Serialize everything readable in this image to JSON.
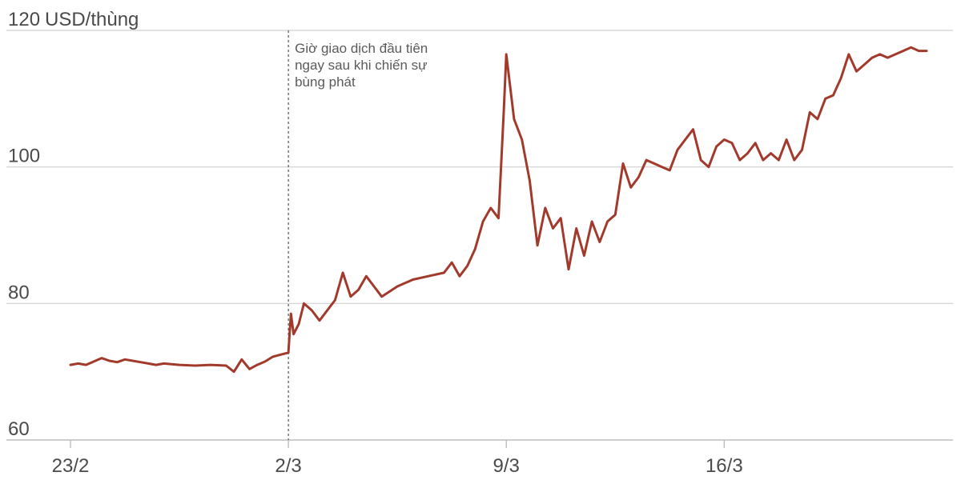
{
  "chart_data": {
    "type": "line",
    "title": "",
    "ylabel": "USD/thùng",
    "xlabel": "",
    "ylim": [
      60,
      120
    ],
    "y_ticks": [
      60,
      80,
      100,
      120
    ],
    "x_range": [
      "2022-02-23",
      "2022-03-22T12:00"
    ],
    "x_ticks": [
      {
        "date": "2022-02-23",
        "label": "23/2"
      },
      {
        "date": "2022-03-02",
        "label": "2/3"
      },
      {
        "date": "2022-03-09",
        "label": "9/3"
      },
      {
        "date": "2022-03-16",
        "label": "16/3"
      }
    ],
    "grid": true,
    "color": "#a23a2c",
    "annotation": {
      "date": "2022-03-02",
      "lines": [
        "Giờ giao dịch đầu tiên",
        "ngay sau khi chiến sự",
        "bùng phát"
      ]
    },
    "series": [
      {
        "name": "",
        "x": [
          "2022-02-23",
          "2022-02-23T06:00",
          "2022-02-23T12:00",
          "2022-02-23T18:00",
          "2022-02-24",
          "2022-02-24T06:00",
          "2022-02-24T12:00",
          "2022-02-24T18:00",
          "2022-02-25",
          "2022-02-25T06:00",
          "2022-02-25T12:00",
          "2022-02-25T18:00",
          "2022-02-26",
          "2022-02-26T12:00",
          "2022-02-27",
          "2022-02-27T12:00",
          "2022-02-28",
          "2022-02-28T06:00",
          "2022-02-28T12:00",
          "2022-02-28T18:00",
          "2022-03-01",
          "2022-03-01T06:00",
          "2022-03-01T12:00",
          "2022-03-01T18:00",
          "2022-03-02",
          "2022-03-02T02:00",
          "2022-03-02T04:00",
          "2022-03-02T08:00",
          "2022-03-02T12:00",
          "2022-03-02T18:00",
          "2022-03-03",
          "2022-03-03T06:00",
          "2022-03-03T12:00",
          "2022-03-03T18:00",
          "2022-03-04",
          "2022-03-04T06:00",
          "2022-03-04T12:00",
          "2022-03-04T18:00",
          "2022-03-05",
          "2022-03-05T12:00",
          "2022-03-06",
          "2022-03-06T12:00",
          "2022-03-07",
          "2022-03-07T06:00",
          "2022-03-07T12:00",
          "2022-03-07T18:00",
          "2022-03-08",
          "2022-03-08T06:00",
          "2022-03-08T12:00",
          "2022-03-08T18:00",
          "2022-03-08T22:00",
          "2022-03-09",
          "2022-03-09T06:00",
          "2022-03-09T12:00",
          "2022-03-09T18:00",
          "2022-03-10",
          "2022-03-10T06:00",
          "2022-03-10T12:00",
          "2022-03-10T18:00",
          "2022-03-11",
          "2022-03-11T06:00",
          "2022-03-11T12:00",
          "2022-03-11T18:00",
          "2022-03-12",
          "2022-03-12T06:00",
          "2022-03-12T12:00",
          "2022-03-12T18:00",
          "2022-03-13",
          "2022-03-13T06:00",
          "2022-03-13T12:00",
          "2022-03-13T18:00",
          "2022-03-14",
          "2022-03-14T06:00",
          "2022-03-14T12:00",
          "2022-03-14T18:00",
          "2022-03-15",
          "2022-03-15T06:00",
          "2022-03-15T12:00",
          "2022-03-15T18:00",
          "2022-03-16",
          "2022-03-16T06:00",
          "2022-03-16T12:00",
          "2022-03-16T18:00",
          "2022-03-17",
          "2022-03-17T06:00",
          "2022-03-17T12:00",
          "2022-03-17T18:00",
          "2022-03-18",
          "2022-03-18T06:00",
          "2022-03-18T12:00",
          "2022-03-18T18:00",
          "2022-03-19",
          "2022-03-19T06:00",
          "2022-03-19T12:00",
          "2022-03-19T18:00",
          "2022-03-20",
          "2022-03-20T06:00",
          "2022-03-20T12:00",
          "2022-03-20T18:00",
          "2022-03-21",
          "2022-03-21T06:00",
          "2022-03-21T12:00",
          "2022-03-21T18:00",
          "2022-03-22",
          "2022-03-22T06:00",
          "2022-03-22T12:00"
        ],
        "values": [
          71.0,
          71.2,
          71.0,
          71.5,
          72.0,
          71.6,
          71.4,
          71.8,
          71.6,
          71.4,
          71.2,
          71.0,
          71.2,
          71.0,
          70.9,
          71.0,
          70.9,
          70.0,
          71.8,
          70.4,
          71.0,
          71.5,
          72.2,
          72.5,
          72.8,
          78.5,
          75.5,
          77.0,
          80.0,
          79.0,
          77.5,
          79.0,
          80.5,
          84.5,
          81.0,
          82.0,
          84.0,
          82.5,
          81.0,
          82.5,
          83.5,
          84.0,
          84.5,
          86.0,
          84.0,
          85.5,
          88.0,
          92.0,
          94.0,
          92.5,
          108.0,
          116.5,
          107.0,
          104.0,
          98.0,
          88.5,
          94.0,
          91.0,
          92.5,
          85.0,
          91.0,
          87.0,
          92.0,
          89.0,
          92.0,
          93.0,
          100.5,
          97.0,
          98.5,
          101.0,
          100.5,
          100.0,
          99.5,
          102.5,
          104.0,
          105.5,
          101.0,
          100.0,
          103.0,
          104.0,
          103.5,
          101.0,
          102.0,
          103.5,
          101.0,
          102.0,
          101.0,
          104.0,
          101.0,
          102.5,
          108.0,
          107.0,
          110.0,
          110.5,
          113.0,
          116.5,
          114.0,
          115.0,
          116.0,
          116.5,
          116.0,
          116.5,
          117.0,
          117.5,
          117.0,
          117.0
        ]
      }
    ]
  }
}
